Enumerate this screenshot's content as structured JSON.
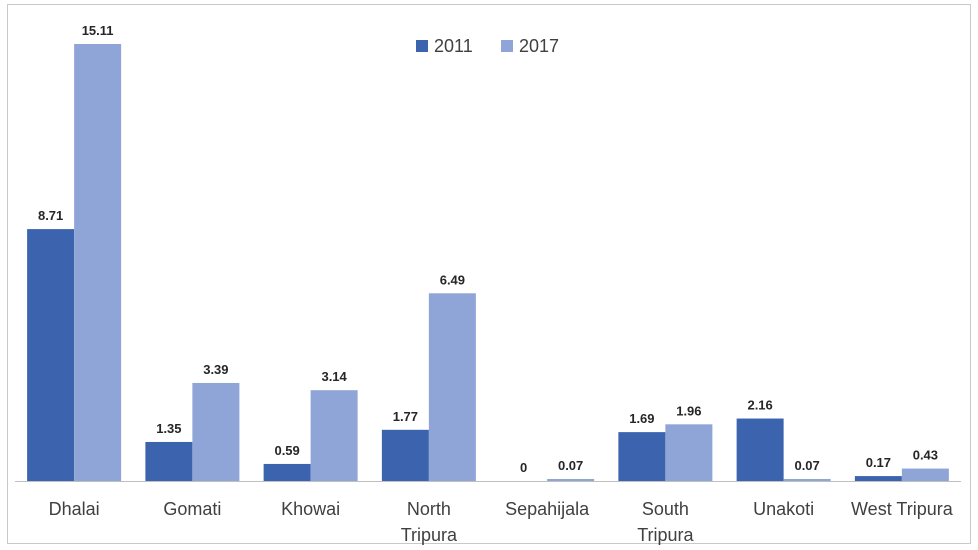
{
  "chart_data": {
    "type": "bar",
    "title": "",
    "xlabel": "",
    "ylabel": "",
    "categories": [
      [
        "Dhalai"
      ],
      [
        "Gomati"
      ],
      [
        "Khowai"
      ],
      [
        "North",
        "Tripura"
      ],
      [
        "Sepahijala"
      ],
      [
        "South",
        "Tripura"
      ],
      [
        "Unakoti"
      ],
      [
        "West Tripura"
      ]
    ],
    "series": [
      {
        "name": "2011",
        "color": "#3c63ad",
        "values": [
          8.71,
          1.35,
          0.59,
          1.77,
          0,
          1.69,
          2.16,
          0.17
        ],
        "labels": [
          "8.71",
          "1.35",
          "0.59",
          "1.77",
          "0",
          "1.69",
          "2.16",
          "0.17"
        ]
      },
      {
        "name": "2017",
        "color": "#8fa5d8",
        "values": [
          15.11,
          3.39,
          3.14,
          6.49,
          0.07,
          1.96,
          0.07,
          0.43
        ],
        "labels": [
          "15.11",
          "3.39",
          "3.14",
          "6.49",
          "0.07",
          "1.96",
          "0.07",
          "0.43"
        ]
      }
    ],
    "ylim": [
      0,
      15.11
    ],
    "grid": false,
    "legend_position": "top-center",
    "axis_color": "#bfbfbf"
  }
}
